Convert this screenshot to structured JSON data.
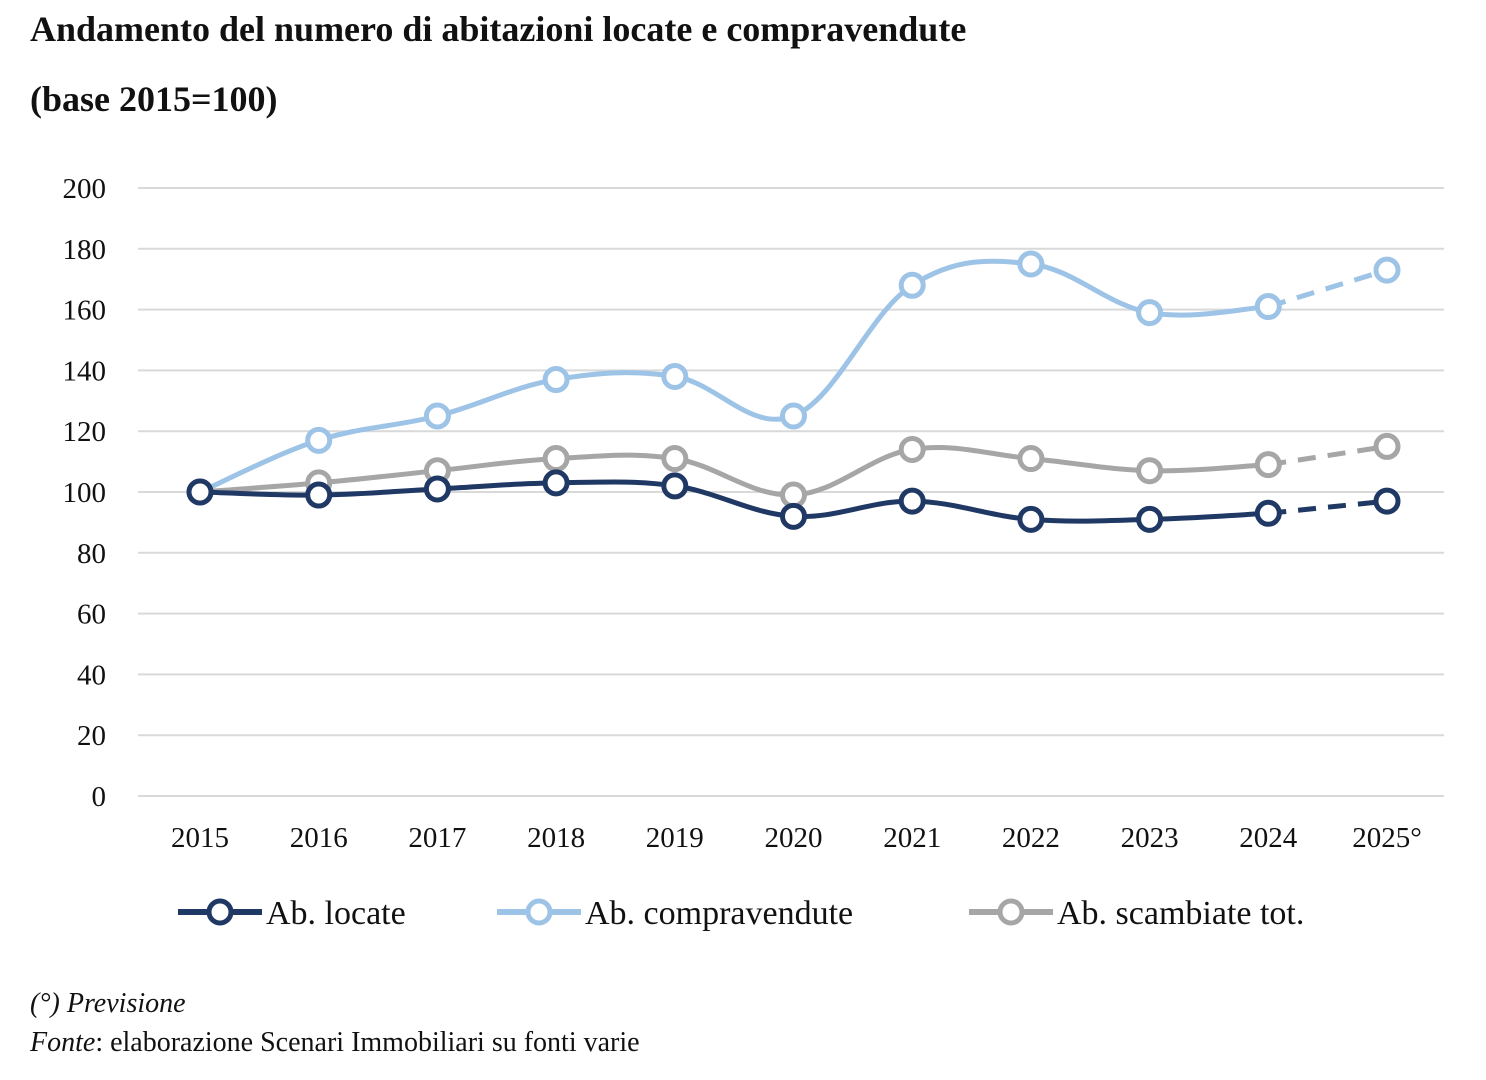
{
  "chart_data": {
    "type": "line",
    "title": "Andamento del numero di abitazioni locate e compravendute",
    "subtitle": "(base 2015=100)",
    "categories": [
      "2015",
      "2016",
      "2017",
      "2018",
      "2019",
      "2020",
      "2021",
      "2022",
      "2023",
      "2024",
      "2025°"
    ],
    "ylim": [
      0,
      200
    ],
    "yticks": [
      0,
      20,
      40,
      60,
      80,
      100,
      120,
      140,
      160,
      180,
      200
    ],
    "grid": true,
    "legend_position": "bottom",
    "forecast_from_index": 9,
    "series": [
      {
        "name": "Ab. locate",
        "color": "#1f3864",
        "values": [
          100,
          99,
          101,
          103,
          102,
          92,
          97,
          91,
          91,
          93,
          97
        ]
      },
      {
        "name": "Ab. compravendute",
        "color": "#9dc3e6",
        "values": [
          100,
          117,
          125,
          137,
          138,
          125,
          168,
          175,
          159,
          161,
          173
        ]
      },
      {
        "name": "Ab. scambiate tot.",
        "color": "#a6a6a6",
        "values": [
          100,
          103,
          107,
          111,
          111,
          99,
          114,
          111,
          107,
          109,
          115
        ]
      }
    ]
  },
  "footer": {
    "note": "(°) Previsione",
    "source_label": "Fonte",
    "source_text": ": elaborazione Scenari Immobiliari su fonti varie"
  }
}
